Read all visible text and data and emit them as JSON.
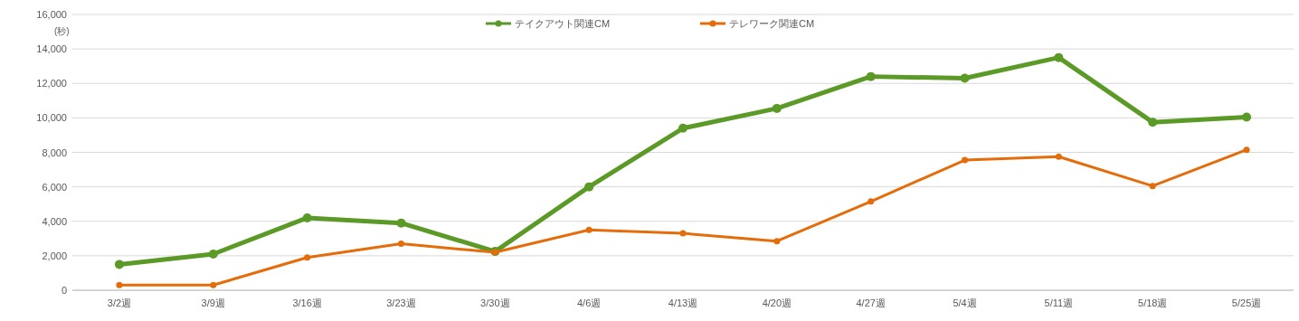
{
  "chart_data": {
    "type": "line",
    "ylabel": "(秒)",
    "categories": [
      "3/2週",
      "3/9週",
      "3/16週",
      "3/23週",
      "3/30週",
      "4/6週",
      "4/13週",
      "4/20週",
      "4/27週",
      "5/4週",
      "5/11週",
      "5/18週",
      "5/25週"
    ],
    "series": [
      {
        "name": "テイクアウト関連CM",
        "color": "#5b9a27",
        "values": [
          1500,
          2100,
          4200,
          3900,
          2250,
          6000,
          9400,
          10550,
          12400,
          12300,
          13500,
          9750,
          10050
        ]
      },
      {
        "name": "テレワーク関連CM",
        "color": "#e46c0a",
        "values": [
          300,
          300,
          1900,
          2700,
          2200,
          3500,
          3300,
          2850,
          5150,
          7550,
          7750,
          6050,
          8150
        ]
      }
    ],
    "ylim": [
      0,
      16000
    ],
    "yticks": [
      {
        "value": 0,
        "label": "0"
      },
      {
        "value": 2000,
        "label": "2,000"
      },
      {
        "value": 4000,
        "label": "4,000"
      },
      {
        "value": 6000,
        "label": "6,000"
      },
      {
        "value": 8000,
        "label": "8,000"
      },
      {
        "value": 10000,
        "label": "10,000"
      },
      {
        "value": 12000,
        "label": "12,000"
      },
      {
        "value": 14000,
        "label": "14,000"
      },
      {
        "value": 16000,
        "label": "16,000"
      }
    ],
    "grid": "y",
    "legend": "top",
    "marker": "circle",
    "line_style": "solid"
  }
}
